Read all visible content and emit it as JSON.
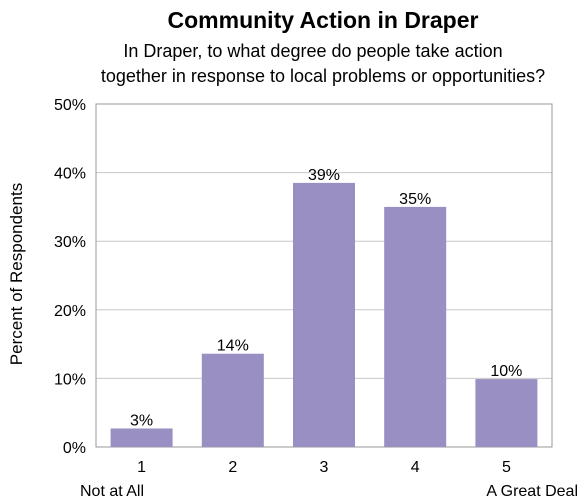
{
  "chart_data": {
    "type": "bar",
    "title": "Community Action in Draper",
    "subtitle_lines": [
      "In Draper, to what degree do people take action",
      "together in response to local problems or opportunities?"
    ],
    "ylabel": "Percent of Respondents",
    "xlabel": "",
    "categories": [
      "1",
      "2",
      "3",
      "4",
      "5"
    ],
    "category_sublabels": [
      "Not at All",
      "",
      "",
      "",
      "A Great Deal"
    ],
    "values": [
      2.7,
      13.6,
      38.5,
      35.0,
      9.9
    ],
    "data_labels": [
      "3%",
      "14%",
      "39%",
      "35%",
      "10%"
    ],
    "ylim": [
      0,
      50
    ],
    "yticks": [
      0,
      10,
      20,
      30,
      40,
      50
    ],
    "ytick_labels": [
      "0%",
      "10%",
      "20%",
      "30%",
      "40%",
      "50%"
    ],
    "grid": true,
    "legend": "none",
    "bar_color": "#9a8fc3",
    "grid_color": "#c8c8c8"
  }
}
